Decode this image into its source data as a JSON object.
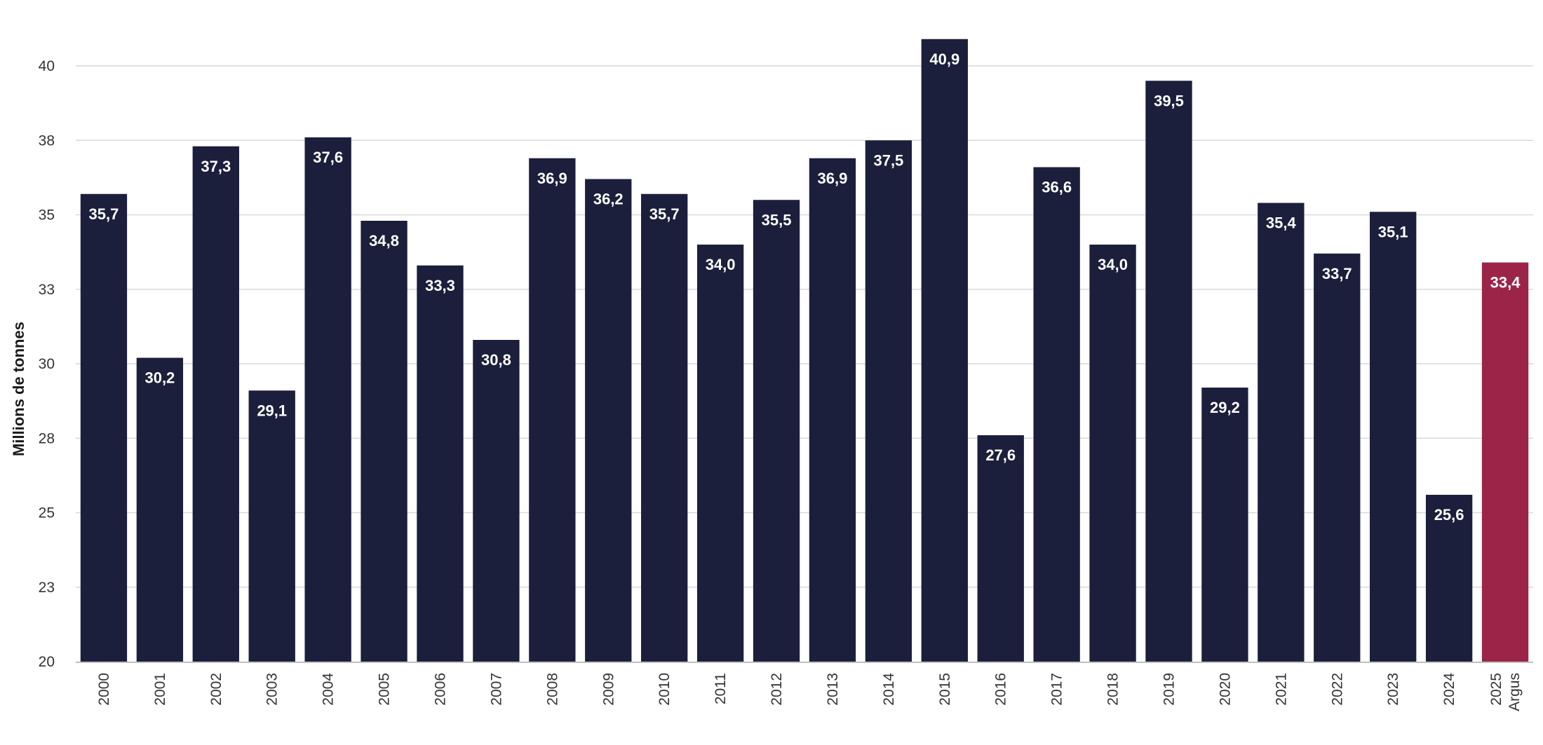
{
  "chart_data": {
    "type": "bar",
    "title": "",
    "xlabel": "",
    "ylabel": "Millions de tonnes",
    "categories": [
      "2000",
      "2001",
      "2002",
      "2003",
      "2004",
      "2005",
      "2006",
      "2007",
      "2008",
      "2009",
      "2010",
      "2011",
      "2012",
      "2013",
      "2014",
      "2015",
      "2016",
      "2017",
      "2018",
      "2019",
      "2020",
      "2021",
      "2022",
      "2023",
      "2024",
      "2025 Argus"
    ],
    "category_lines": [
      [
        "2000"
      ],
      [
        "2001"
      ],
      [
        "2002"
      ],
      [
        "2003"
      ],
      [
        "2004"
      ],
      [
        "2005"
      ],
      [
        "2006"
      ],
      [
        "2007"
      ],
      [
        "2008"
      ],
      [
        "2009"
      ],
      [
        "2010"
      ],
      [
        "2011"
      ],
      [
        "2012"
      ],
      [
        "2013"
      ],
      [
        "2014"
      ],
      [
        "2015"
      ],
      [
        "2016"
      ],
      [
        "2017"
      ],
      [
        "2018"
      ],
      [
        "2019"
      ],
      [
        "2020"
      ],
      [
        "2021"
      ],
      [
        "2022"
      ],
      [
        "2023"
      ],
      [
        "2024"
      ],
      [
        "2025",
        "Argus"
      ]
    ],
    "values": [
      35.7,
      30.2,
      37.3,
      29.1,
      37.6,
      34.8,
      33.3,
      30.8,
      36.9,
      36.2,
      35.7,
      34.0,
      35.5,
      36.9,
      37.5,
      40.9,
      27.6,
      36.6,
      34.0,
      39.5,
      29.2,
      35.4,
      33.7,
      35.1,
      25.6,
      33.4
    ],
    "data_labels": [
      "35,7",
      "30,2",
      "37,3",
      "29,1",
      "37,6",
      "34,8",
      "33,3",
      "30,8",
      "36,9",
      "36,2",
      "35,7",
      "34,0",
      "35,5",
      "36,9",
      "37,5",
      "40,9",
      "27,6",
      "36,6",
      "34,0",
      "39,5",
      "29,2",
      "35,4",
      "33,7",
      "35,1",
      "25,6",
      "33,4"
    ],
    "ylim": [
      20,
      40.8
    ],
    "yticks": [
      {
        "value": 20,
        "label": "20"
      },
      {
        "value": 22.5,
        "label": "23"
      },
      {
        "value": 25,
        "label": "25"
      },
      {
        "value": 27.5,
        "label": "28"
      },
      {
        "value": 30,
        "label": "30"
      },
      {
        "value": 32.5,
        "label": "33"
      },
      {
        "value": 35,
        "label": "35"
      },
      {
        "value": 37.5,
        "label": "38"
      },
      {
        "value": 40,
        "label": "40"
      }
    ],
    "grid": true,
    "colors": {
      "default": "#1c1f3b",
      "highlight": "#9b2448",
      "highlight_index": 25
    }
  }
}
